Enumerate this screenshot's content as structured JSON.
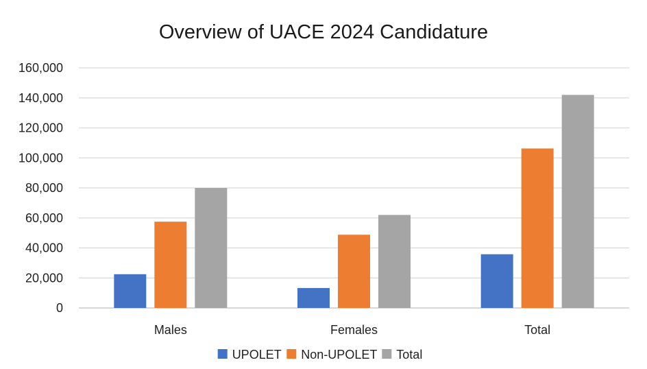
{
  "chart_data": {
    "type": "bar",
    "title": "Overview of UACE 2024 Candidature",
    "categories": [
      "Males",
      "Females",
      "Total"
    ],
    "series": [
      {
        "name": "UPOLET",
        "color": "#4472c4",
        "values": [
          22500,
          13300,
          35800
        ]
      },
      {
        "name": "Non-UPOLET",
        "color": "#ed7d31",
        "values": [
          57500,
          48800,
          106300
        ]
      },
      {
        "name": "Total",
        "color": "#a5a5a5",
        "values": [
          80000,
          62000,
          142000
        ]
      }
    ],
    "ylim": [
      0,
      160000
    ],
    "yticks": [
      0,
      20000,
      40000,
      60000,
      80000,
      100000,
      120000,
      140000,
      160000
    ],
    "ytick_labels": [
      "0",
      "20,000",
      "40,000",
      "60,000",
      "80,000",
      "100,000",
      "120,000",
      "140,000",
      "160,000"
    ],
    "xlabel": "",
    "ylabel": "",
    "grid": true,
    "legend_position": "bottom"
  }
}
